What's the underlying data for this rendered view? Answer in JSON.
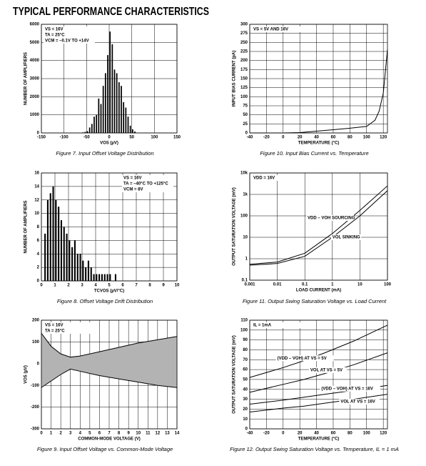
{
  "title": "TYPICAL PERFORMANCE CHARACTERISTICS",
  "chart_data": [
    {
      "type": "histogram",
      "caption": "Figure 7. Input Offset Voltage Distribution",
      "x_label": "VOS (µV)",
      "y_label": "NUMBER OF AMPLIFIERS",
      "annotations": [
        "VS = 16V",
        "TA = 25°C",
        "VCM = –0.1V TO +14V"
      ],
      "bins": [
        -60,
        -55,
        -50,
        -45,
        -40,
        -35,
        -30,
        -25,
        -20,
        -15,
        -10,
        -5,
        0,
        5,
        10,
        15,
        20,
        25,
        30,
        35,
        40,
        45,
        50,
        55,
        60
      ],
      "values": [
        30,
        60,
        100,
        300,
        500,
        900,
        1000,
        1900,
        1600,
        2600,
        3300,
        4300,
        5600,
        4900,
        3500,
        3300,
        2800,
        2600,
        1700,
        1400,
        900,
        400,
        200,
        80
      ],
      "color": "#000000",
      "xlim": [
        -150,
        150
      ],
      "xticks": [
        -150,
        -100,
        -50,
        0,
        50,
        100,
        150
      ],
      "ylim": [
        0,
        6000
      ],
      "yticks": [
        0,
        1000,
        2000,
        3000,
        4000,
        5000,
        6000
      ],
      "grid": true
    },
    {
      "type": "line",
      "caption": "Figure 10. Input Bias Current vs. Temperature",
      "x_label": "TEMPERATURE (°C)",
      "y_label": "INPUT BIAS CURRENT (pA)",
      "annotations": [
        "VS = 5V AND 16V"
      ],
      "x": [
        -40,
        -20,
        0,
        20,
        40,
        60,
        80,
        100,
        110,
        115,
        120,
        125
      ],
      "series": [
        {
          "color": "#000000",
          "values": [
            0,
            0,
            0,
            1,
            5,
            9,
            13,
            18,
            35,
            60,
            110,
            230
          ]
        }
      ],
      "xlim": [
        -40,
        125
      ],
      "xticks": [
        -40,
        -20,
        0,
        20,
        40,
        60,
        80,
        100,
        120
      ],
      "ylim": [
        0,
        300
      ],
      "yticks": [
        0,
        25,
        50,
        75,
        100,
        125,
        150,
        175,
        200,
        225,
        250,
        275,
        300
      ],
      "grid": true
    },
    {
      "type": "histogram",
      "caption": "Figure 8. Offset Voltage Drift Distribution",
      "x_label": "TCVOS (µV/°C)",
      "y_label": "NUMBER OF AMPLIFIERS",
      "annotations": [
        "VS = 16V",
        "TA = –40°C TO +125°C",
        "VCM = 8V"
      ],
      "bins": [
        0.2,
        0.4,
        0.6,
        0.8,
        1.0,
        1.2,
        1.4,
        1.6,
        1.8,
        2.0,
        2.2,
        2.4,
        2.6,
        2.8,
        3.0,
        3.2,
        3.4,
        3.6,
        3.8,
        4.0,
        4.2,
        4.4,
        4.6,
        4.8,
        5.0,
        5.2,
        5.4,
        5.6
      ],
      "values": [
        7,
        12,
        13,
        14,
        12,
        11,
        9,
        8,
        7,
        6,
        5,
        6,
        4,
        4,
        3,
        2,
        3,
        2,
        1,
        1,
        1,
        1,
        1,
        1,
        1,
        0,
        1
      ],
      "color": "#000000",
      "xlim": [
        0,
        10
      ],
      "xticks": [
        0,
        1,
        2,
        3,
        4,
        5,
        6,
        7,
        8,
        9,
        10
      ],
      "ylim": [
        0,
        16
      ],
      "yticks": [
        0,
        2,
        4,
        6,
        8,
        10,
        12,
        14,
        16
      ],
      "grid": true
    },
    {
      "type": "line",
      "caption": "Figure 11. Output Swing Saturation Voltage vs. Load Current",
      "x_label": "LOAD CURRENT (mA)",
      "y_label": "OUTPUT SATURATION VOLTAGE (mV)",
      "annotations": [
        "VDD = 16V"
      ],
      "x": [
        0.001,
        0.01,
        0.1,
        1,
        10,
        100
      ],
      "series": [
        {
          "name": "VDD – VOH SOURCING",
          "color": "#000000",
          "values": [
            0.55,
            0.7,
            1.8,
            15,
            180,
            2500
          ]
        },
        {
          "name": "VOL SINKING",
          "color": "#000000",
          "values": [
            0.5,
            0.6,
            1.3,
            10,
            100,
            1500
          ]
        }
      ],
      "xlog": true,
      "ylog": true,
      "xlim": [
        0.001,
        100
      ],
      "xticks": [
        0.001,
        0.01,
        0.1,
        1,
        10,
        100
      ],
      "ylim": [
        0.1,
        10000
      ],
      "yticks": [
        0.1,
        1,
        10,
        100,
        {
          "value": 1000,
          "label": "1k"
        },
        {
          "value": 10000,
          "label": "10k"
        }
      ],
      "grid": true
    },
    {
      "type": "line",
      "caption": "Figure 9. Input Offset Voltage vs. Common-Mode Voltage",
      "x_label": "COMMON-MODE VOLTAGE (V)",
      "y_label": "VOS (µV)",
      "annotations": [
        "VS = 16V",
        "TA = 25°C"
      ],
      "x": [
        0,
        1,
        2,
        3,
        4,
        6,
        8,
        10,
        12,
        14
      ],
      "series": [
        {
          "color": "#000000",
          "values": [
            140,
            80,
            45,
            30,
            35,
            55,
            75,
            95,
            110,
            125
          ]
        },
        {
          "color": "#000000",
          "values": [
            -110,
            -80,
            -50,
            -25,
            -35,
            -55,
            -70,
            -85,
            -100,
            -110
          ]
        }
      ],
      "fill_between": "#b3b3b3",
      "xlim": [
        0,
        14
      ],
      "xticks": [
        0,
        1,
        2,
        3,
        4,
        5,
        6,
        7,
        8,
        9,
        10,
        11,
        12,
        13,
        14
      ],
      "ylim": [
        -300,
        200
      ],
      "yticks": [
        -300,
        -200,
        -100,
        0,
        100,
        200
      ],
      "grid": true
    },
    {
      "type": "line",
      "caption": "Figure 12. Output Swing Saturation Voltage vs. Temperature, IL = 1 mA",
      "x_label": "TEMPERATURE (°C)",
      "y_label": "OUTPUT SATURATION VOLTAGE (mV)",
      "annotations": [
        "IL = 1mA"
      ],
      "x": [
        -40,
        0,
        25,
        50,
        85,
        125
      ],
      "series": [
        {
          "name": "(VDD – VOH) AT VS = 5V",
          "color": "#000000",
          "values": [
            52,
            62,
            69,
            77,
            89,
            105
          ]
        },
        {
          "name": "VOL AT VS = 5V",
          "color": "#000000",
          "values": [
            37,
            45,
            50,
            56,
            65,
            77
          ]
        },
        {
          "name": "(VDD – VOH) AT VS = 16V",
          "color": "#000000",
          "values": [
            25,
            29,
            32,
            35,
            39,
            44
          ]
        },
        {
          "name": "VOL AT VS = 16V",
          "color": "#000000",
          "values": [
            17,
            21,
            23,
            26,
            30,
            35
          ]
        }
      ],
      "xlim": [
        -40,
        125
      ],
      "xticks": [
        -40,
        -20,
        0,
        20,
        40,
        60,
        80,
        100,
        120
      ],
      "ylim": [
        0,
        110
      ],
      "yticks": [
        0,
        10,
        20,
        30,
        40,
        50,
        60,
        70,
        80,
        90,
        100,
        110
      ],
      "grid": true
    }
  ]
}
